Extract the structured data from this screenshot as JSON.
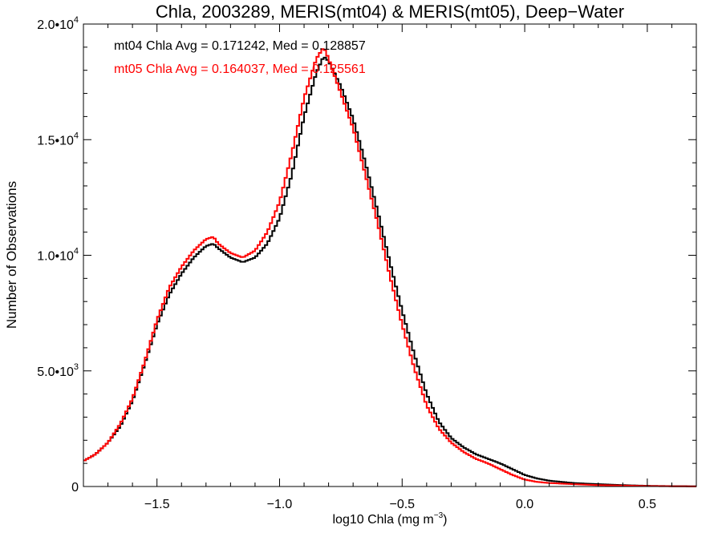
{
  "chart_data": {
    "type": "line",
    "title": "Chla, 2003289, MERIS(mt04) & MERIS(mt05), Deep−Water",
    "xlabel": "log10 Chla (mg m",
    "xlabel_sup": "−3",
    "xlabel_suffix": ")",
    "ylabel": "Number of Observations",
    "xlim": [
      -1.8,
      0.7
    ],
    "ylim": [
      0,
      20000
    ],
    "x_ticks": [
      -1.5,
      -1.0,
      -0.5,
      0.0,
      0.5
    ],
    "x_tick_labels": [
      "−1.5",
      "−1.0",
      "−0.5",
      "0.0",
      "0.5"
    ],
    "y_ticks": [
      0,
      5000,
      10000,
      15000,
      20000
    ],
    "y_tick_labels": [
      {
        "mant": "0",
        "exp": ""
      },
      {
        "mant": "5.0•10",
        "exp": "3"
      },
      {
        "mant": "1.0•10",
        "exp": "4"
      },
      {
        "mant": "1.5•10",
        "exp": "4"
      },
      {
        "mant": "2.0•10",
        "exp": "4"
      }
    ],
    "grid": false,
    "annotations": [
      {
        "text": "mt04 Chla Avg = 0.171242, Med = 0.128857",
        "color": "#000000"
      },
      {
        "text": "mt05 Chla Avg = 0.164037, Med = 0.125561",
        "color": "#ff0000"
      }
    ],
    "series": [
      {
        "color": "#000000",
        "x": [
          -1.8,
          -1.75,
          -1.7,
          -1.65,
          -1.6,
          -1.55,
          -1.5,
          -1.45,
          -1.4,
          -1.35,
          -1.3,
          -1.27,
          -1.25,
          -1.2,
          -1.15,
          -1.1,
          -1.05,
          -1.0,
          -0.95,
          -0.9,
          -0.85,
          -0.82,
          -0.8,
          -0.75,
          -0.7,
          -0.65,
          -0.6,
          -0.55,
          -0.5,
          -0.45,
          -0.4,
          -0.35,
          -0.3,
          -0.25,
          -0.2,
          -0.15,
          -0.1,
          -0.05,
          0.0,
          0.05,
          0.1,
          0.2,
          0.3,
          0.4,
          0.5,
          0.6,
          0.7
        ],
        "y": [
          1100,
          1400,
          1900,
          2600,
          3700,
          5300,
          7000,
          8300,
          9200,
          9900,
          10400,
          10500,
          10300,
          9900,
          9700,
          9900,
          10500,
          11600,
          13500,
          16000,
          17900,
          18600,
          18400,
          17300,
          15900,
          14000,
          11900,
          9700,
          7600,
          5700,
          4000,
          2800,
          2100,
          1700,
          1400,
          1200,
          1000,
          750,
          500,
          350,
          250,
          150,
          100,
          60,
          30,
          15,
          8
        ]
      },
      {
        "color": "#ff0000",
        "x": [
          -1.8,
          -1.75,
          -1.7,
          -1.65,
          -1.6,
          -1.55,
          -1.5,
          -1.45,
          -1.4,
          -1.35,
          -1.3,
          -1.27,
          -1.25,
          -1.2,
          -1.15,
          -1.1,
          -1.05,
          -1.0,
          -0.95,
          -0.9,
          -0.85,
          -0.82,
          -0.8,
          -0.75,
          -0.7,
          -0.65,
          -0.6,
          -0.55,
          -0.5,
          -0.45,
          -0.4,
          -0.35,
          -0.3,
          -0.25,
          -0.2,
          -0.15,
          -0.1,
          -0.05,
          0.0,
          0.05,
          0.1,
          0.2,
          0.3,
          0.4,
          0.5,
          0.6,
          0.7
        ],
        "y": [
          1100,
          1400,
          1900,
          2700,
          3800,
          5400,
          7200,
          8600,
          9500,
          10200,
          10700,
          10800,
          10500,
          10100,
          9900,
          10200,
          11000,
          12300,
          14400,
          16800,
          18500,
          19000,
          18500,
          17000,
          15500,
          13500,
          11400,
          9100,
          7000,
          5100,
          3500,
          2500,
          1900,
          1500,
          1200,
          1000,
          750,
          500,
          300,
          200,
          150,
          100,
          60,
          40,
          20,
          10,
          5
        ]
      }
    ]
  }
}
